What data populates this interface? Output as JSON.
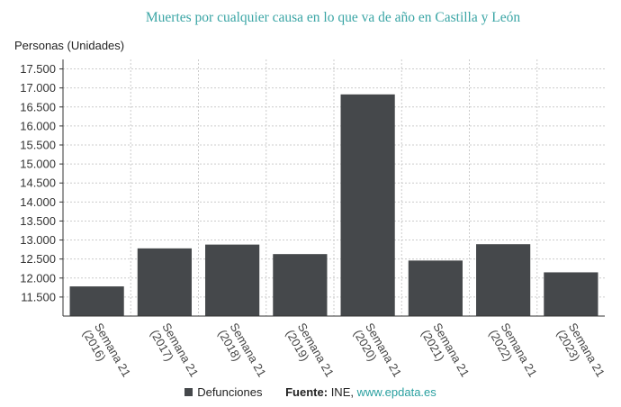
{
  "colors": {
    "bar": "#45484b",
    "title": "#3aa5a5",
    "grid": "#cccccc",
    "link": "#2aa0a0"
  },
  "chart_data": {
    "type": "bar",
    "title": "Muertes por cualquier causa en lo que va de año en Castilla y León",
    "ylabel": "Personas (Unidades)",
    "xlabel": "",
    "categories": [
      "Semana 21 (2016)",
      "Semana 21 (2017)",
      "Semana 21 (2018)",
      "Semana 21 (2019)",
      "Semana 21 (2020)",
      "Semana 21 (2021)",
      "Semana 21 (2022)",
      "Semana 21 (2023)"
    ],
    "categories_lines": [
      [
        "Semana 21",
        "(2016)"
      ],
      [
        "Semana 21",
        "(2017)"
      ],
      [
        "Semana 21",
        "(2018)"
      ],
      [
        "Semana 21",
        "(2019)"
      ],
      [
        "Semana 21",
        "(2020)"
      ],
      [
        "Semana 21",
        "(2021)"
      ],
      [
        "Semana 21",
        "(2022)"
      ],
      [
        "Semana 21",
        "(2023)"
      ]
    ],
    "series": [
      {
        "name": "Defunciones",
        "values": [
          11780,
          12780,
          12880,
          12630,
          16830,
          12460,
          12890,
          12150
        ]
      }
    ],
    "ylim": [
      11000,
      17750
    ],
    "yticks": [
      11500,
      12000,
      12500,
      13000,
      13500,
      14000,
      14500,
      15000,
      15500,
      16000,
      16500,
      17000,
      17500
    ],
    "ytick_labels": [
      "11.500",
      "12.000",
      "12.500",
      "13.000",
      "13.500",
      "14.000",
      "14.500",
      "15.000",
      "15.500",
      "16.000",
      "16.500",
      "17.000",
      "17.500"
    ],
    "grid": true,
    "legend": "bottom"
  },
  "legend": {
    "series_label": "Defunciones",
    "source_label": "Fuente:",
    "source_text": "INE,",
    "source_link": "www.epdata.es"
  }
}
